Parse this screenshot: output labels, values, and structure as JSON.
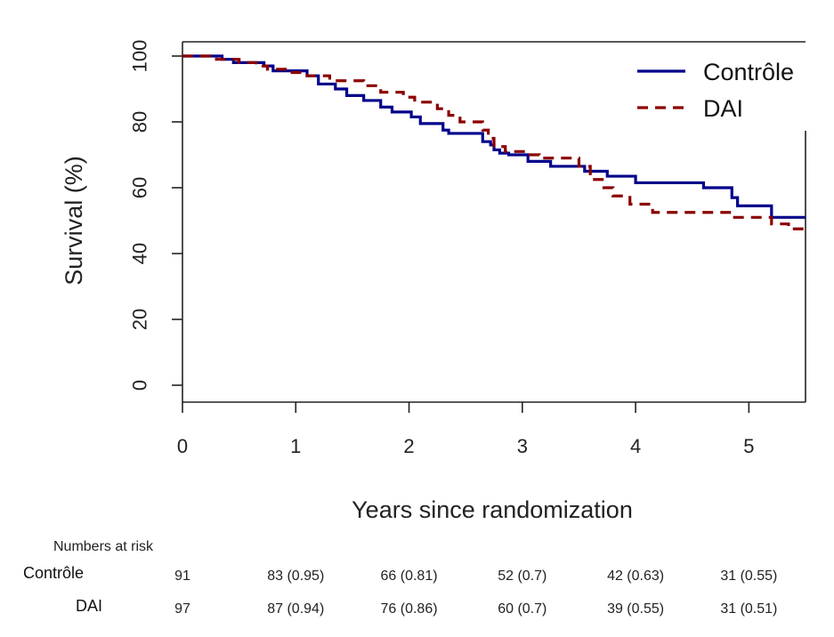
{
  "chart_data": {
    "type": "line",
    "title": "",
    "xlabel": "Years since randomization",
    "ylabel": "Survival (%)",
    "xlim": [
      0,
      5.5
    ],
    "ylim": [
      0,
      100
    ],
    "x_ticks": [
      0,
      1,
      2,
      3,
      4,
      5
    ],
    "y_ticks": [
      0,
      20,
      40,
      60,
      80,
      100
    ],
    "grid": false,
    "legend_position": "top-right",
    "step": true,
    "series": [
      {
        "name": "Contrôle",
        "color": "#00008b",
        "dash": "solid",
        "x": [
          0,
          0.35,
          0.45,
          0.72,
          0.8,
          1.1,
          1.2,
          1.35,
          1.45,
          1.6,
          1.75,
          1.85,
          2.02,
          2.1,
          2.3,
          2.35,
          2.65,
          2.72,
          2.75,
          2.8,
          2.88,
          3.05,
          3.25,
          3.55,
          3.75,
          4.0,
          4.6,
          4.85,
          4.9,
          5.2,
          5.5
        ],
        "y": [
          100,
          99,
          98,
          97,
          95.5,
          94,
          91.5,
          90,
          88,
          86.5,
          84.5,
          83,
          81.5,
          79.5,
          77.5,
          76.5,
          74,
          73,
          71.5,
          70.5,
          70,
          68,
          66.5,
          65,
          63.5,
          61.5,
          60,
          57,
          54.5,
          51,
          51
        ]
      },
      {
        "name": "DAI",
        "color": "#8b0000",
        "dash": "dashed",
        "x": [
          0,
          0.3,
          0.5,
          0.65,
          0.75,
          0.95,
          1.1,
          1.3,
          1.6,
          1.75,
          1.95,
          2.05,
          2.25,
          2.35,
          2.45,
          2.65,
          2.7,
          2.75,
          2.85,
          3.05,
          3.15,
          3.5,
          3.6,
          3.72,
          3.8,
          3.95,
          4.15,
          4.85,
          5.2,
          5.35,
          5.5
        ],
        "y": [
          100,
          99,
          98,
          97,
          96,
          95,
          94,
          92.5,
          91,
          89,
          87.5,
          86,
          84,
          82,
          80,
          77.5,
          75,
          72.5,
          71,
          70,
          69,
          66.5,
          62.5,
          60,
          57.5,
          55,
          52.5,
          51,
          49,
          47.5,
          47.5
        ]
      }
    ],
    "risk_table": {
      "title": "Numbers at risk",
      "times": [
        0,
        1,
        2,
        3,
        4,
        5
      ],
      "rows": [
        {
          "label": "Contrôle",
          "values": [
            "91",
            "83 (0.95)",
            "66 (0.81)",
            "52 (0.7)",
            "42 (0.63)",
            "31 (0.55)"
          ]
        },
        {
          "label": "DAI",
          "values": [
            "97",
            "87 (0.94)",
            "76 (0.86)",
            "60 (0.7)",
            "39 (0.55)",
            "31 (0.51)"
          ]
        }
      ]
    }
  }
}
